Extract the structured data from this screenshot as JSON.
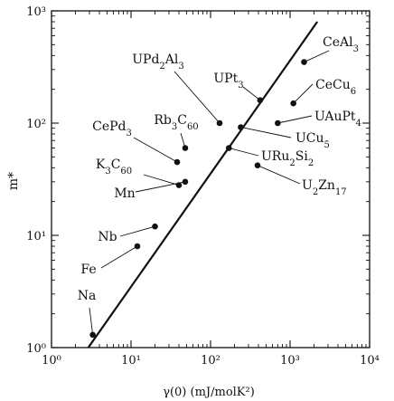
{
  "chart_data": {
    "type": "scatter",
    "title": "",
    "xlabel": "γ(0) (mJ/molK²)",
    "ylabel": "m*",
    "xscale": "log",
    "yscale": "log",
    "xlim": [
      1,
      10000
    ],
    "ylim": [
      1,
      1000
    ],
    "grid": false,
    "x_ticks": [
      {
        "value": 1,
        "label": "10⁰"
      },
      {
        "value": 10,
        "label": "10¹"
      },
      {
        "value": 100,
        "label": "10²"
      },
      {
        "value": 1000,
        "label": "10³"
      },
      {
        "value": 10000,
        "label": "10⁴"
      }
    ],
    "y_ticks": [
      {
        "value": 1,
        "label": "10⁰"
      },
      {
        "value": 10,
        "label": "10¹"
      },
      {
        "value": 100,
        "label": "10²"
      },
      {
        "value": 1000,
        "label": "10³"
      }
    ],
    "fit_line": {
      "x": [
        2.9,
        2200
      ],
      "y": [
        1,
        800
      ]
    },
    "points": [
      {
        "name": "Na",
        "x": 3.3,
        "y": 1.3
      },
      {
        "name": "Fe",
        "x": 12,
        "y": 8
      },
      {
        "name": "Nb",
        "x": 20,
        "y": 12
      },
      {
        "name": "Mn",
        "x": 48,
        "y": 30
      },
      {
        "name": "K3C60",
        "x": 40,
        "y": 28
      },
      {
        "name": "CePd3",
        "x": 38,
        "y": 45
      },
      {
        "name": "Rb3C60",
        "x": 48,
        "y": 60
      },
      {
        "name": "UPd2Al3",
        "x": 130,
        "y": 100
      },
      {
        "name": "UPt3",
        "x": 420,
        "y": 160
      },
      {
        "name": "UCu5",
        "x": 240,
        "y": 92
      },
      {
        "name": "URu2Si2",
        "x": 170,
        "y": 60
      },
      {
        "name": "U2Zn17",
        "x": 390,
        "y": 42
      },
      {
        "name": "UAuPt4",
        "x": 700,
        "y": 100
      },
      {
        "name": "CeCu6",
        "x": 1100,
        "y": 150
      },
      {
        "name": "CeAl3",
        "x": 1500,
        "y": 350
      }
    ]
  }
}
